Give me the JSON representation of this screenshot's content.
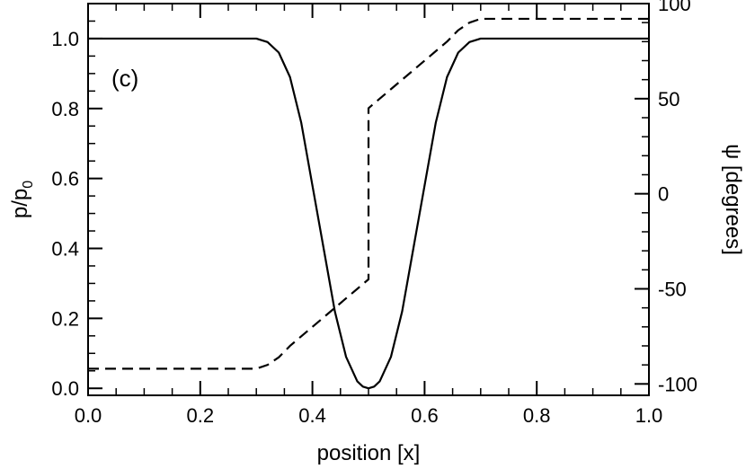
{
  "chart_data": {
    "type": "line",
    "panel_label": "(c)",
    "xlabel": "position [x]",
    "ylabel_left_main": "p/p",
    "ylabel_left_sub": "0",
    "ylabel_right": "ψ [degrees]",
    "xlim": [
      0.0,
      1.0
    ],
    "ylim_left": [
      -0.02,
      1.1
    ],
    "ylim_right": [
      -106,
      100
    ],
    "xticks": [
      "0.0",
      "0.2",
      "0.4",
      "0.6",
      "0.8",
      "1.0"
    ],
    "yticks_left": [
      "0.0",
      "0.2",
      "0.4",
      "0.6",
      "0.8",
      "1.0"
    ],
    "yticks_right": [
      "-100",
      "-50",
      "0",
      "50",
      "100"
    ],
    "series": [
      {
        "axis": "left",
        "style": "solid",
        "x": [
          0.0,
          0.1,
          0.2,
          0.3,
          0.32,
          0.34,
          0.36,
          0.38,
          0.4,
          0.42,
          0.44,
          0.46,
          0.48,
          0.49,
          0.5,
          0.51,
          0.52,
          0.54,
          0.56,
          0.58,
          0.6,
          0.62,
          0.64,
          0.66,
          0.68,
          0.7,
          0.8,
          0.9,
          1.0
        ],
        "y": [
          1.0,
          1.0,
          1.0,
          1.0,
          0.99,
          0.96,
          0.89,
          0.76,
          0.58,
          0.4,
          0.22,
          0.09,
          0.02,
          0.005,
          0.0,
          0.005,
          0.02,
          0.09,
          0.22,
          0.4,
          0.58,
          0.76,
          0.89,
          0.96,
          0.99,
          1.0,
          1.0,
          1.0,
          1.0
        ]
      },
      {
        "axis": "right",
        "style": "dashed",
        "x": [
          0.0,
          0.1,
          0.2,
          0.3,
          0.32,
          0.34,
          0.36,
          0.4,
          0.44,
          0.48,
          0.5,
          0.5,
          0.52,
          0.56,
          0.6,
          0.64,
          0.66,
          0.68,
          0.7,
          0.8,
          0.9,
          1.0
        ],
        "y": [
          -92,
          -92,
          -92,
          -92,
          -90,
          -86,
          -80,
          -70,
          -60,
          -50,
          -45,
          45,
          50,
          60,
          70,
          80,
          86,
          90,
          92,
          92,
          92,
          92
        ]
      }
    ]
  }
}
